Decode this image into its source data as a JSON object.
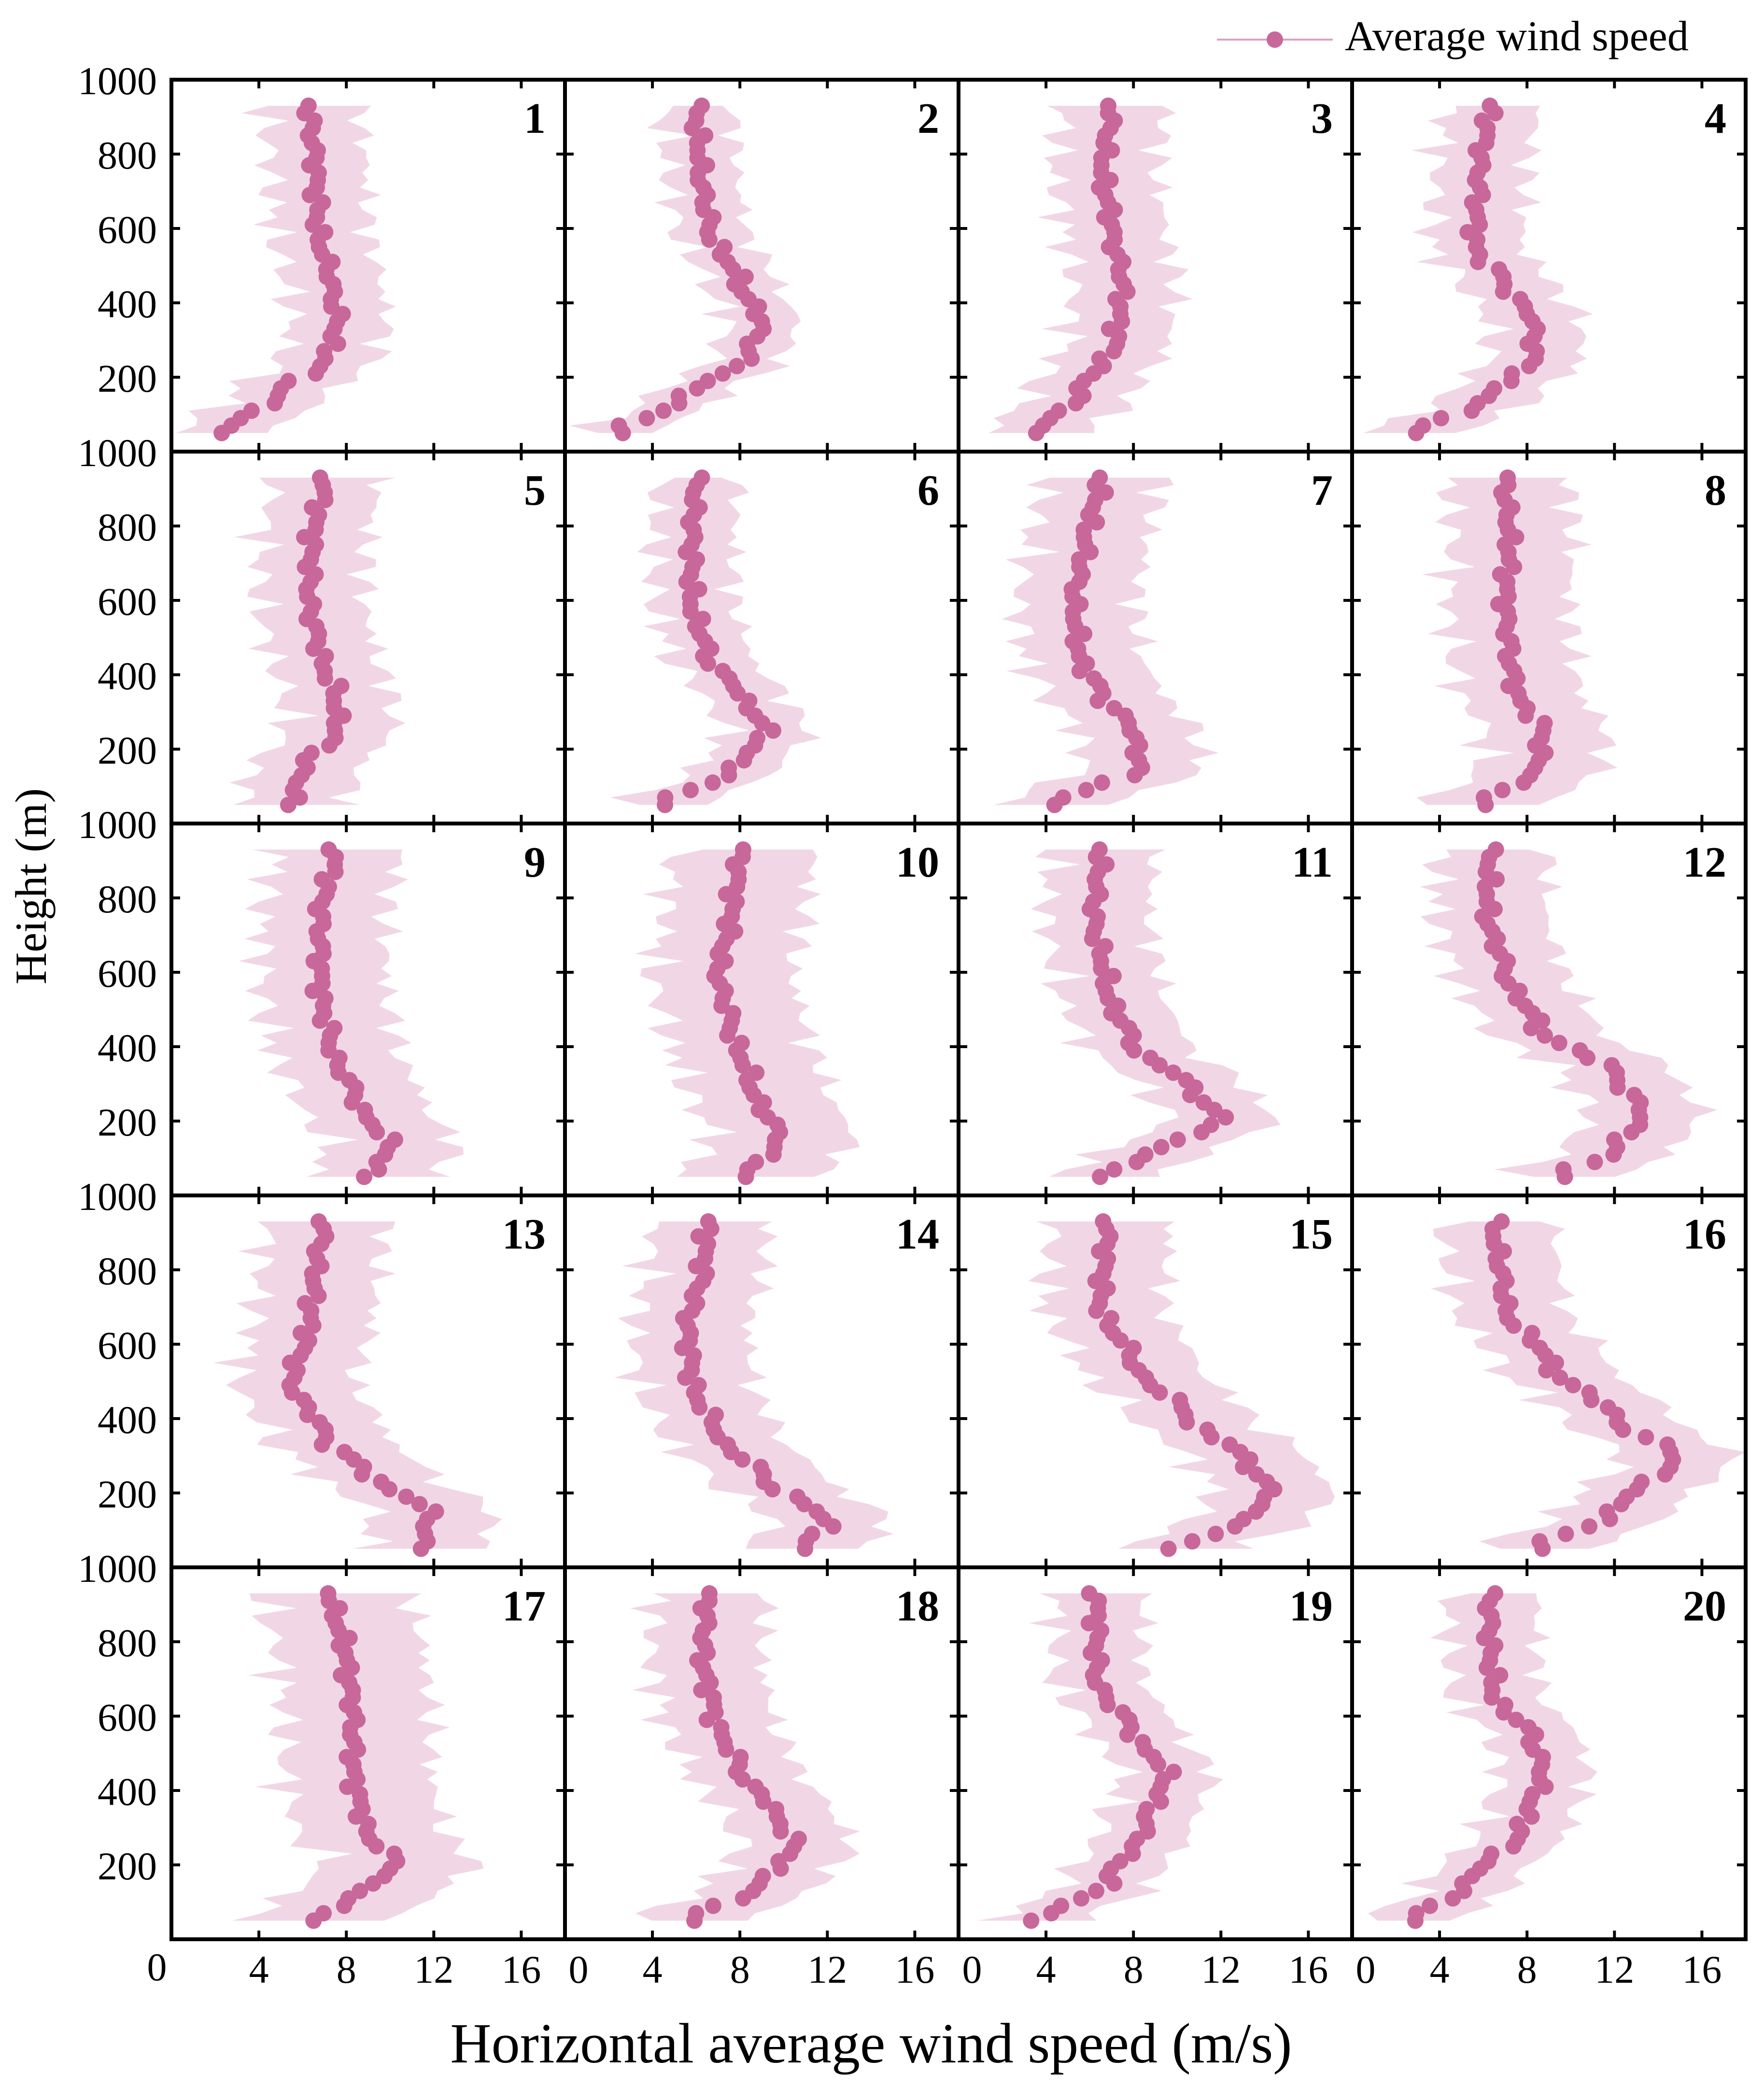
{
  "legend": {
    "label": "Average wind speed"
  },
  "colors": {
    "marker": "#c8679a",
    "band": "#f0d3e3",
    "line": "#d9a2c2",
    "frame": "#000000"
  },
  "chart_data": {
    "type": "scatter",
    "layout": "5x4 panel grid",
    "xlabel": "Horizontal average wind speed (m/s)",
    "ylabel": "Height (m)",
    "xlim": [
      0,
      18
    ],
    "ylim": [
      50,
      1000
    ],
    "xticks": [
      "0",
      "4",
      "8",
      "12",
      "16"
    ],
    "yticks": [
      "200",
      "400",
      "600",
      "800",
      "1000"
    ],
    "heights": [
      50,
      70,
      90,
      110,
      130,
      150,
      170,
      190,
      210,
      230,
      250,
      270,
      290,
      310,
      330,
      350,
      370,
      390,
      410,
      430,
      450,
      470,
      490,
      510,
      530,
      550,
      570,
      590,
      610,
      630,
      650,
      670,
      690,
      710,
      730,
      750,
      770,
      790,
      810,
      830,
      850,
      870,
      890,
      910,
      930
    ],
    "band": "shaded range around the average profile",
    "legend_position": "top-right",
    "panels": [
      {
        "label": "1",
        "anchors": [
          [
            50,
            2.3
          ],
          [
            150,
            4.8
          ],
          [
            250,
            7.1
          ],
          [
            350,
            7.6
          ],
          [
            450,
            7.3
          ],
          [
            600,
            6.7
          ],
          [
            750,
            6.6
          ],
          [
            930,
            6.3
          ]
        ],
        "band_width": 2.6
      },
      {
        "label": "2",
        "anchors": [
          [
            50,
            2.5
          ],
          [
            150,
            5.5
          ],
          [
            250,
            8.3
          ],
          [
            350,
            9.0
          ],
          [
            450,
            8.0
          ],
          [
            600,
            6.6
          ],
          [
            750,
            6.2
          ],
          [
            930,
            6.0
          ]
        ],
        "band_width": 1.9
      },
      {
        "label": "3",
        "anchors": [
          [
            50,
            3.5
          ],
          [
            150,
            5.5
          ],
          [
            300,
            7.2
          ],
          [
            450,
            7.5
          ],
          [
            600,
            7.0
          ],
          [
            750,
            6.6
          ],
          [
            930,
            7.0
          ]
        ],
        "band_width": 2.8
      },
      {
        "label": "4",
        "anchors": [
          [
            50,
            3.0
          ],
          [
            150,
            6.3
          ],
          [
            250,
            8.3
          ],
          [
            350,
            8.3
          ],
          [
            450,
            7.0
          ],
          [
            550,
            5.6
          ],
          [
            750,
            5.8
          ],
          [
            930,
            6.3
          ]
        ],
        "band_width": 2.5
      },
      {
        "label": "5",
        "anchors": [
          [
            50,
            5.5
          ],
          [
            150,
            6.0
          ],
          [
            250,
            7.6
          ],
          [
            350,
            7.5
          ],
          [
            450,
            6.8
          ],
          [
            600,
            6.3
          ],
          [
            750,
            6.4
          ],
          [
            930,
            7.0
          ]
        ],
        "band_width": 2.9
      },
      {
        "label": "6",
        "anchors": [
          [
            50,
            4.5
          ],
          [
            150,
            7.8
          ],
          [
            250,
            9.2
          ],
          [
            350,
            8.0
          ],
          [
            450,
            6.5
          ],
          [
            600,
            5.8
          ],
          [
            750,
            5.8
          ],
          [
            930,
            6.0
          ]
        ],
        "band_width": 2.2
      },
      {
        "label": "7",
        "anchors": [
          [
            50,
            4.3
          ],
          [
            150,
            8.3
          ],
          [
            250,
            8.0
          ],
          [
            350,
            6.5
          ],
          [
            450,
            5.5
          ],
          [
            600,
            5.3
          ],
          [
            750,
            5.8
          ],
          [
            930,
            6.5
          ]
        ],
        "band_width": 3.2
      },
      {
        "label": "8",
        "anchors": [
          [
            50,
            6.0
          ],
          [
            150,
            8.5
          ],
          [
            250,
            8.7
          ],
          [
            350,
            7.5
          ],
          [
            450,
            7.2
          ],
          [
            600,
            7.0
          ],
          [
            750,
            7.2
          ],
          [
            930,
            7.0
          ]
        ],
        "band_width": 3.3
      },
      {
        "label": "9",
        "anchors": [
          [
            50,
            9.0
          ],
          [
            130,
            10.0
          ],
          [
            250,
            8.5
          ],
          [
            400,
            7.3
          ],
          [
            550,
            6.8
          ],
          [
            750,
            6.8
          ],
          [
            930,
            7.5
          ]
        ],
        "band_width": 3.4
      },
      {
        "label": "10",
        "anchors": [
          [
            50,
            8.3
          ],
          [
            150,
            9.8
          ],
          [
            300,
            8.5
          ],
          [
            450,
            7.6
          ],
          [
            600,
            7.0
          ],
          [
            750,
            7.6
          ],
          [
            930,
            8.0
          ]
        ],
        "band_width": 3.8
      },
      {
        "label": "11",
        "anchors": [
          [
            50,
            6.5
          ],
          [
            120,
            9.0
          ],
          [
            200,
            12.0
          ],
          [
            300,
            10.5
          ],
          [
            400,
            8.0
          ],
          [
            550,
            6.8
          ],
          [
            750,
            6.2
          ],
          [
            930,
            6.5
          ]
        ],
        "band_width": 2.8
      },
      {
        "label": "12",
        "anchors": [
          [
            50,
            9.5
          ],
          [
            120,
            12.0
          ],
          [
            220,
            13.3
          ],
          [
            330,
            12.0
          ],
          [
            450,
            8.5
          ],
          [
            600,
            7.0
          ],
          [
            750,
            6.2
          ],
          [
            930,
            6.3
          ]
        ],
        "band_width": 3.0
      },
      {
        "label": "13",
        "anchors": [
          [
            60,
            11.5
          ],
          [
            150,
            11.8
          ],
          [
            250,
            9.0
          ],
          [
            350,
            7.0
          ],
          [
            500,
            5.5
          ],
          [
            650,
            6.3
          ],
          [
            800,
            6.6
          ],
          [
            930,
            7.0
          ]
        ],
        "band_width": 3.2
      },
      {
        "label": "14",
        "anchors": [
          [
            60,
            11.0
          ],
          [
            120,
            12.0
          ],
          [
            250,
            9.0
          ],
          [
            350,
            7.0
          ],
          [
            500,
            5.8
          ],
          [
            650,
            5.6
          ],
          [
            800,
            6.3
          ],
          [
            930,
            6.5
          ]
        ],
        "band_width": 3.1
      },
      {
        "label": "15",
        "anchors": [
          [
            50,
            9.8
          ],
          [
            120,
            13.0
          ],
          [
            200,
            14.3
          ],
          [
            300,
            13.0
          ],
          [
            400,
            10.5
          ],
          [
            550,
            8.0
          ],
          [
            700,
            6.5
          ],
          [
            930,
            6.8
          ]
        ],
        "band_width": 3.2
      },
      {
        "label": "16",
        "anchors": [
          [
            50,
            8.5
          ],
          [
            150,
            12.0
          ],
          [
            300,
            14.8
          ],
          [
            400,
            12.0
          ],
          [
            550,
            9.0
          ],
          [
            700,
            7.0
          ],
          [
            930,
            6.5
          ]
        ],
        "band_width": 3.0
      },
      {
        "label": "17",
        "anchors": [
          [
            50,
            6.5
          ],
          [
            120,
            8.5
          ],
          [
            200,
            10.3
          ],
          [
            300,
            8.8
          ],
          [
            450,
            8.3
          ],
          [
            600,
            8.3
          ],
          [
            750,
            8.0
          ],
          [
            930,
            7.3
          ]
        ],
        "band_width": 4.0
      },
      {
        "label": "18",
        "anchors": [
          [
            50,
            5.8
          ],
          [
            150,
            9.0
          ],
          [
            250,
            10.5
          ],
          [
            350,
            9.5
          ],
          [
            450,
            8.0
          ],
          [
            600,
            6.8
          ],
          [
            750,
            6.3
          ],
          [
            930,
            6.5
          ]
        ],
        "band_width": 3.0
      },
      {
        "label": "19",
        "anchors": [
          [
            50,
            3.6
          ],
          [
            150,
            6.8
          ],
          [
            300,
            8.5
          ],
          [
            450,
            9.5
          ],
          [
            550,
            8.0
          ],
          [
            700,
            6.3
          ],
          [
            930,
            6.3
          ]
        ],
        "band_width": 2.4
      },
      {
        "label": "20",
        "anchors": [
          [
            50,
            2.8
          ],
          [
            150,
            5.3
          ],
          [
            300,
            7.8
          ],
          [
            450,
            8.7
          ],
          [
            550,
            8.2
          ],
          [
            650,
            6.5
          ],
          [
            800,
            6.3
          ],
          [
            930,
            6.3
          ]
        ],
        "band_width": 2.4
      }
    ]
  }
}
